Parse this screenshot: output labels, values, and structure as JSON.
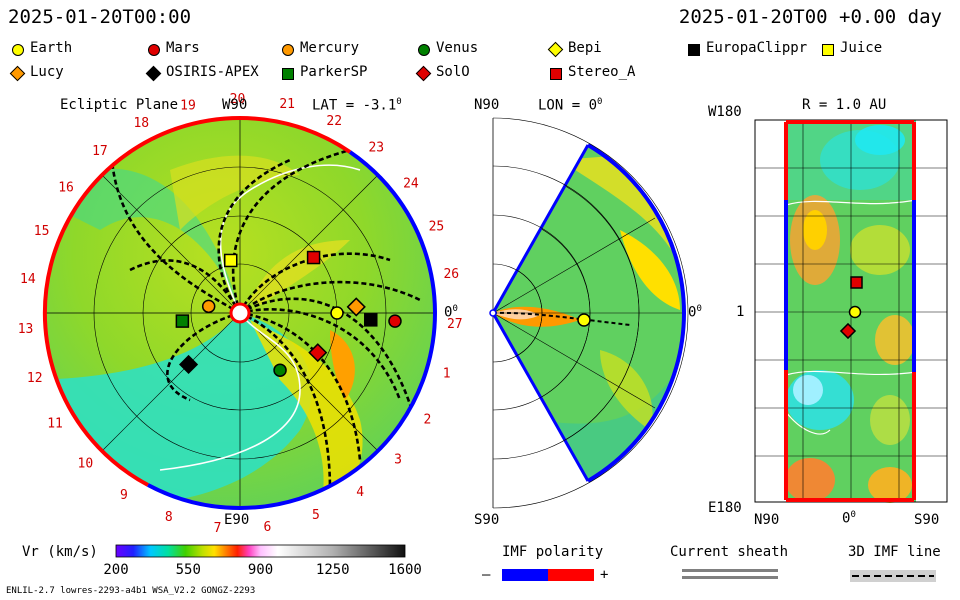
{
  "header": {
    "left_time": "2025-01-20T00:00",
    "right_time": "2025-01-20T00 +0.00 day"
  },
  "legend": [
    {
      "name": "Earth",
      "shape": "circle",
      "color": "#ffff00"
    },
    {
      "name": "Mars",
      "shape": "circle",
      "color": "#e00000"
    },
    {
      "name": "Mercury",
      "shape": "circle",
      "color": "#ff9900"
    },
    {
      "name": "Venus",
      "shape": "circle",
      "color": "#008000"
    },
    {
      "name": "Bepi",
      "shape": "diamond",
      "color": "#ffff00"
    },
    {
      "name": "EuropaClippr",
      "shape": "square",
      "color": "#000000"
    },
    {
      "name": "Juice",
      "shape": "square",
      "color": "#ffff00"
    },
    {
      "name": "Lucy",
      "shape": "diamond",
      "color": "#ff9900"
    },
    {
      "name": "OSIRIS-APEX",
      "shape": "diamond",
      "color": "#000000"
    },
    {
      "name": "ParkerSP",
      "shape": "square",
      "color": "#008000"
    },
    {
      "name": "SolO",
      "shape": "diamond",
      "color": "#e00000"
    },
    {
      "name": "Stereo_A",
      "shape": "square",
      "color": "#e00000"
    }
  ],
  "panels": {
    "ecliptic": {
      "title": "Ecliptic Plane",
      "lat": "LAT = -3.1",
      "deg": "0",
      "top_label": "W90",
      "bottom_label": "E90",
      "right_label": "0",
      "right_deg": "0"
    },
    "meridional": {
      "top_label": "N90",
      "lon": "LON = 0",
      "deg": "0",
      "bottom_label": "S90",
      "right_label": "0",
      "right_deg": "0"
    },
    "radial": {
      "title": "R = 1.0 AU",
      "top_left": "W180",
      "bottom_left": "E180",
      "mid_left": "1",
      "x_left": "N90",
      "x_mid": "0",
      "x_mid_deg": "0",
      "x_right": "S90"
    }
  },
  "chart_data": [
    {
      "type": "polar-map",
      "title": "Ecliptic Plane",
      "carrington_ticks": [
        "19",
        "20",
        "21",
        "22",
        "23",
        "24",
        "25",
        "26",
        "27",
        "1",
        "2",
        "3",
        "4",
        "5",
        "6",
        "7",
        "8",
        "9",
        "10",
        "11",
        "12",
        "13",
        "14",
        "15",
        "16",
        "17",
        "18"
      ],
      "imf_polarity_rim": {
        "negative_color": "#0000ff",
        "positive_color": "#ff0000"
      },
      "bodies": [
        {
          "name": "Earth",
          "r_au": 1.0,
          "lon_deg": 0
        },
        {
          "name": "Mars",
          "r_au": 1.6,
          "lon_deg": -3
        },
        {
          "name": "Mercury",
          "r_au": 0.33,
          "lon_deg": 168
        },
        {
          "name": "Venus",
          "r_au": 0.72,
          "lon_deg": -55
        },
        {
          "name": "Bepi",
          "r_au": 1.2,
          "lon_deg": 3
        },
        {
          "name": "EuropaClippr",
          "r_au": 1.35,
          "lon_deg": -3
        },
        {
          "name": "Juice",
          "r_au": 0.55,
          "lon_deg": 100
        },
        {
          "name": "Lucy",
          "r_au": 1.2,
          "lon_deg": 3
        },
        {
          "name": "OSIRIS-APEX",
          "r_au": 0.75,
          "lon_deg": -135
        },
        {
          "name": "ParkerSP",
          "r_au": 0.6,
          "lon_deg": -172
        },
        {
          "name": "SolO",
          "r_au": 0.9,
          "lon_deg": -27
        },
        {
          "name": "Stereo_A",
          "r_au": 0.95,
          "lon_deg": 37
        }
      ]
    },
    {
      "type": "meridional-wedge",
      "lon": "0",
      "lat_range_deg": [
        -60,
        60
      ]
    },
    {
      "type": "heatmap",
      "title": "R = 1.0 AU",
      "x_range": [
        "N90",
        "S90"
      ],
      "y_range": [
        "W180",
        "E180"
      ]
    }
  ],
  "colorbar": {
    "label": "Vr (km/s)",
    "ticks": [
      "200",
      "550",
      "900",
      "1250",
      "1600"
    ],
    "range": [
      200,
      1600
    ]
  },
  "keys": {
    "imf_polarity": "IMF polarity",
    "minus": "–",
    "plus": "+",
    "current_sheath": "Current sheath",
    "imf_line": "3D IMF line"
  },
  "footer": {
    "left": "ENLIL-2.7 lowres-2293-a4b1 WSA_V2.2 GONGZ-2293"
  }
}
